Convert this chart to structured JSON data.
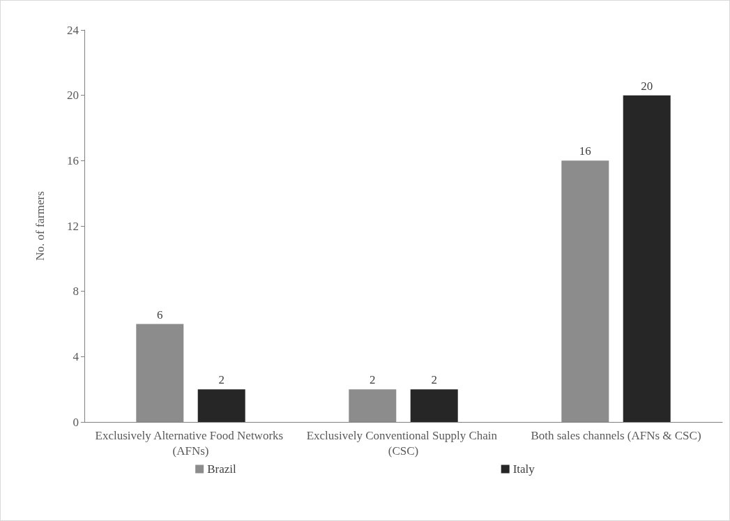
{
  "chart_data": {
    "type": "bar",
    "ylabel": "No. of farmers",
    "categories": [
      "Exclusively Alternative Food Networks (AFNs)",
      "Exclusively Conventional Supply Chain (CSC)",
      "Both sales channels (AFNs & CSC)"
    ],
    "series": [
      {
        "name": "Brazil",
        "color": "#8c8c8c",
        "values": [
          6,
          2,
          16
        ]
      },
      {
        "name": "Italy",
        "color": "#262626",
        "values": [
          2,
          2,
          20
        ]
      }
    ],
    "ylim": [
      0,
      24
    ],
    "yticks": [
      0,
      4,
      8,
      12,
      16,
      20,
      24
    ],
    "grid": false,
    "legend": "bottom",
    "data_labels": true
  }
}
